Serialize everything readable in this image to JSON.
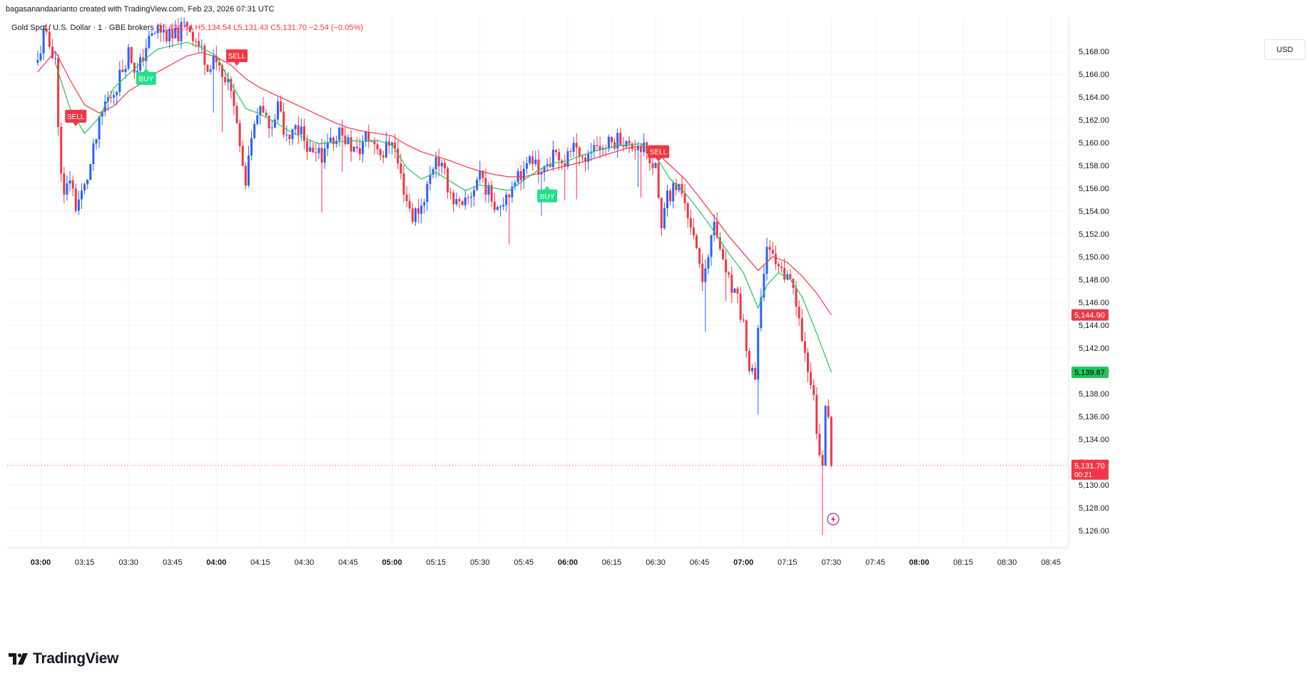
{
  "header": {
    "attribution": "bagasanandaarianto created with TradingView.com, Feb 23, 2026 07:31 UTC"
  },
  "legend": {
    "symbol": "Gold Spot / U.S. Dollar · 1 · GBE brokers",
    "open": "O5,134.54",
    "high": "H5,134.54",
    "low": "L5,131.43",
    "close": "C5,131.70",
    "change": "−2.54 (−0.05%)"
  },
  "price_scale": {
    "currency": "USD",
    "tags": {
      "red_ma": "5,144.90",
      "green_ma": "5,139.87",
      "last_price": "5,131.70",
      "countdown": "00:21"
    }
  },
  "footer": {
    "brand": "TradingView"
  },
  "colors": {
    "up": "#2962ff",
    "down": "#f23645",
    "ma_slow": "#f23645",
    "ma_fast": "#22c55e",
    "sell_signal": "#f23645",
    "buy_signal": "#22e08a",
    "grid": "#f0f3fa"
  },
  "chart_data": {
    "type": "candlestick",
    "title": "Gold Spot / U.S. Dollar · 1 · GBE brokers",
    "ylim": [
      5124.5,
      5171
    ],
    "y_ticks": [
      "5,126.00",
      "5,128.00",
      "5,130.00",
      "5,132.00",
      "5,134.00",
      "5,136.00",
      "5,138.00",
      "5,140.00",
      "5,142.00",
      "5,144.00",
      "5,146.00",
      "5,148.00",
      "5,150.00",
      "5,152.00",
      "5,154.00",
      "5,156.00",
      "5,158.00",
      "5,160.00",
      "5,162.00",
      "5,164.00",
      "5,166.00",
      "5,168.00"
    ],
    "x_ticks": [
      "03:00",
      "03:15",
      "03:30",
      "03:45",
      "04:00",
      "04:15",
      "04:30",
      "04:45",
      "05:00",
      "05:15",
      "05:30",
      "05:45",
      "06:00",
      "06:15",
      "06:30",
      "06:45",
      "07:00",
      "07:15",
      "07:30",
      "07:45",
      "08:00",
      "08:15",
      "08:30",
      "08:45"
    ],
    "x_bold": [
      "03:00",
      "04:00",
      "05:00",
      "06:00",
      "07:00",
      "08:00"
    ],
    "grid": true,
    "price_path": [
      [
        "02:59",
        5167.0
      ],
      [
        "03:01",
        5169.5
      ],
      [
        "03:05",
        5167.5
      ],
      [
        "03:06",
        5161.0
      ],
      [
        "03:08",
        5155.0
      ],
      [
        "03:10",
        5157.0
      ],
      [
        "03:12",
        5154.5
      ],
      [
        "03:15",
        5156.0
      ],
      [
        "03:17",
        5158.0
      ],
      [
        "03:20",
        5161.5
      ],
      [
        "03:22",
        5163.5
      ],
      [
        "03:25",
        5164.5
      ],
      [
        "03:28",
        5166.5
      ],
      [
        "03:30",
        5168.0
      ],
      [
        "03:33",
        5166.0
      ],
      [
        "03:36",
        5168.5
      ],
      [
        "03:40",
        5170.0
      ],
      [
        "03:45",
        5169.0
      ],
      [
        "03:50",
        5170.5
      ],
      [
        "03:55",
        5168.0
      ],
      [
        "03:58",
        5166.5
      ],
      [
        "04:00",
        5167.5
      ],
      [
        "04:03",
        5166.0
      ],
      [
        "04:06",
        5164.0
      ],
      [
        "04:08",
        5159.0
      ],
      [
        "04:10",
        5157.0
      ],
      [
        "04:12",
        5161.0
      ],
      [
        "04:15",
        5163.0
      ],
      [
        "04:18",
        5161.0
      ],
      [
        "04:21",
        5163.0
      ],
      [
        "04:24",
        5160.0
      ],
      [
        "04:27",
        5161.5
      ],
      [
        "04:30",
        5160.5
      ],
      [
        "04:33",
        5158.5
      ],
      [
        "04:36",
        5159.0
      ],
      [
        "04:39",
        5160.0
      ],
      [
        "04:42",
        5161.0
      ],
      [
        "04:45",
        5160.0
      ],
      [
        "04:48",
        5159.0
      ],
      [
        "04:51",
        5160.5
      ],
      [
        "04:54",
        5160.0
      ],
      [
        "04:57",
        5159.0
      ],
      [
        "05:00",
        5160.5
      ],
      [
        "05:03",
        5157.0
      ],
      [
        "05:05",
        5155.0
      ],
      [
        "05:07",
        5153.5
      ],
      [
        "05:10",
        5154.5
      ],
      [
        "05:13",
        5157.0
      ],
      [
        "05:15",
        5159.0
      ],
      [
        "05:18",
        5157.0
      ],
      [
        "05:21",
        5155.0
      ],
      [
        "05:24",
        5154.0
      ],
      [
        "05:27",
        5155.5
      ],
      [
        "05:30",
        5157.5
      ],
      [
        "05:33",
        5155.5
      ],
      [
        "05:36",
        5154.5
      ],
      [
        "05:39",
        5155.5
      ],
      [
        "05:42",
        5157.0
      ],
      [
        "05:45",
        5157.5
      ],
      [
        "05:48",
        5158.5
      ],
      [
        "05:51",
        5157.0
      ],
      [
        "05:54",
        5158.5
      ],
      [
        "05:57",
        5159.0
      ],
      [
        "06:00",
        5158.5
      ],
      [
        "06:03",
        5160.0
      ],
      [
        "06:06",
        5158.5
      ],
      [
        "06:09",
        5160.0
      ],
      [
        "06:12",
        5159.5
      ],
      [
        "06:15",
        5160.0
      ],
      [
        "06:18",
        5160.5
      ],
      [
        "06:21",
        5159.5
      ],
      [
        "06:24",
        5160.0
      ],
      [
        "06:27",
        5159.5
      ],
      [
        "06:30",
        5157.5
      ],
      [
        "06:32",
        5153.0
      ],
      [
        "06:34",
        5155.0
      ],
      [
        "06:37",
        5156.0
      ],
      [
        "06:40",
        5155.0
      ],
      [
        "06:42",
        5153.0
      ],
      [
        "06:44",
        5151.0
      ],
      [
        "06:46",
        5148.0
      ],
      [
        "06:48",
        5150.5
      ],
      [
        "06:50",
        5152.5
      ],
      [
        "06:52",
        5150.0
      ],
      [
        "06:54",
        5148.5
      ],
      [
        "06:56",
        5147.0
      ],
      [
        "06:58",
        5146.0
      ],
      [
        "07:00",
        5144.0
      ],
      [
        "07:02",
        5140.0
      ],
      [
        "07:04",
        5139.0
      ],
      [
        "07:06",
        5147.0
      ],
      [
        "07:08",
        5151.0
      ],
      [
        "07:10",
        5150.0
      ],
      [
        "07:12",
        5149.5
      ],
      [
        "07:14",
        5148.0
      ],
      [
        "07:16",
        5147.5
      ],
      [
        "07:18",
        5146.0
      ],
      [
        "07:20",
        5142.0
      ],
      [
        "07:22",
        5140.0
      ],
      [
        "07:24",
        5138.0
      ],
      [
        "07:26",
        5132.0
      ],
      [
        "07:27",
        5131.5
      ],
      [
        "07:28",
        5136.5
      ],
      [
        "07:29",
        5136.5
      ],
      [
        "07:30",
        5131.7
      ]
    ],
    "series": [
      {
        "name": "",
        "color": "#f23645",
        "values": [
          [
            "02:59",
            5166.2
          ],
          [
            "03:05",
            5168.0
          ],
          [
            "03:10",
            5165.5
          ],
          [
            "03:15",
            5163.3
          ],
          [
            "03:20",
            5162.6
          ],
          [
            "03:25",
            5163.2
          ],
          [
            "03:30",
            5164.5
          ],
          [
            "03:35",
            5165.3
          ],
          [
            "03:40",
            5166.2
          ],
          [
            "03:45",
            5166.9
          ],
          [
            "03:50",
            5167.6
          ],
          [
            "03:55",
            5167.9
          ],
          [
            "04:00",
            5167.5
          ],
          [
            "04:05",
            5166.8
          ],
          [
            "04:10",
            5165.6
          ],
          [
            "04:15",
            5164.8
          ],
          [
            "04:20",
            5164.2
          ],
          [
            "04:25",
            5163.6
          ],
          [
            "04:30",
            5163.0
          ],
          [
            "04:35",
            5162.4
          ],
          [
            "04:40",
            5161.8
          ],
          [
            "04:45",
            5161.3
          ],
          [
            "04:50",
            5161.0
          ],
          [
            "04:55",
            5160.8
          ],
          [
            "05:00",
            5160.6
          ],
          [
            "05:05",
            5159.8
          ],
          [
            "05:10",
            5159.2
          ],
          [
            "05:15",
            5158.8
          ],
          [
            "05:20",
            5158.4
          ],
          [
            "05:25",
            5157.9
          ],
          [
            "05:30",
            5157.5
          ],
          [
            "05:35",
            5157.2
          ],
          [
            "05:40",
            5157.0
          ],
          [
            "05:45",
            5157.0
          ],
          [
            "05:50",
            5157.3
          ],
          [
            "05:55",
            5157.7
          ],
          [
            "06:00",
            5158.0
          ],
          [
            "06:05",
            5158.3
          ],
          [
            "06:10",
            5158.7
          ],
          [
            "06:15",
            5159.1
          ],
          [
            "06:20",
            5159.5
          ],
          [
            "06:25",
            5159.7
          ],
          [
            "06:30",
            5159.2
          ],
          [
            "06:35",
            5158.0
          ],
          [
            "06:40",
            5156.8
          ],
          [
            "06:45",
            5155.2
          ],
          [
            "06:50",
            5153.5
          ],
          [
            "06:55",
            5151.8
          ],
          [
            "07:00",
            5150.3
          ],
          [
            "07:05",
            5148.8
          ],
          [
            "07:10",
            5150.0
          ],
          [
            "07:15",
            5149.5
          ],
          [
            "07:20",
            5148.3
          ],
          [
            "07:25",
            5146.8
          ],
          [
            "07:30",
            5144.9
          ]
        ]
      },
      {
        "name": "",
        "color": "#22c55e",
        "values": [
          [
            "03:05",
            5167.0
          ],
          [
            "03:10",
            5163.0
          ],
          [
            "03:15",
            5160.8
          ],
          [
            "03:20",
            5162.2
          ],
          [
            "03:25",
            5164.8
          ],
          [
            "03:30",
            5166.0
          ],
          [
            "03:35",
            5167.2
          ],
          [
            "03:40",
            5168.2
          ],
          [
            "03:45",
            5168.5
          ],
          [
            "03:50",
            5168.8
          ],
          [
            "03:55",
            5168.3
          ],
          [
            "04:00",
            5167.6
          ],
          [
            "04:05",
            5165.2
          ],
          [
            "04:10",
            5163.0
          ],
          [
            "04:15",
            5162.5
          ],
          [
            "04:20",
            5161.8
          ],
          [
            "04:25",
            5161.0
          ],
          [
            "04:30",
            5160.4
          ],
          [
            "04:35",
            5159.9
          ],
          [
            "04:40",
            5160.0
          ],
          [
            "04:45",
            5160.2
          ],
          [
            "04:50",
            5160.1
          ],
          [
            "04:55",
            5160.2
          ],
          [
            "05:00",
            5159.8
          ],
          [
            "05:05",
            5157.8
          ],
          [
            "05:10",
            5156.8
          ],
          [
            "05:15",
            5157.4
          ],
          [
            "05:20",
            5156.6
          ],
          [
            "05:25",
            5155.8
          ],
          [
            "05:30",
            5156.3
          ],
          [
            "05:35",
            5156.0
          ],
          [
            "05:40",
            5155.8
          ],
          [
            "05:45",
            5156.7
          ],
          [
            "05:50",
            5157.6
          ],
          [
            "05:55",
            5158.2
          ],
          [
            "06:00",
            5158.4
          ],
          [
            "06:05",
            5158.9
          ],
          [
            "06:10",
            5159.3
          ],
          [
            "06:15",
            5159.6
          ],
          [
            "06:20",
            5159.8
          ],
          [
            "06:25",
            5159.9
          ],
          [
            "06:30",
            5158.8
          ],
          [
            "06:35",
            5156.8
          ],
          [
            "06:40",
            5155.6
          ],
          [
            "06:45",
            5154.0
          ],
          [
            "06:50",
            5152.2
          ],
          [
            "06:55",
            5150.3
          ],
          [
            "07:00",
            5148.6
          ],
          [
            "07:05",
            5145.5
          ],
          [
            "07:08",
            5147.5
          ],
          [
            "07:12",
            5148.6
          ],
          [
            "07:16",
            5148.0
          ],
          [
            "07:20",
            5146.5
          ],
          [
            "07:25",
            5143.3
          ],
          [
            "07:30",
            5139.87
          ]
        ]
      }
    ],
    "signals": [
      {
        "type": "SELL",
        "time": "03:12",
        "price": 5161.5
      },
      {
        "type": "BUY",
        "time": "03:36",
        "price": 5166.5
      },
      {
        "type": "SELL",
        "time": "04:07",
        "price": 5166.8
      },
      {
        "type": "BUY",
        "time": "05:53",
        "price": 5156.2
      },
      {
        "type": "SELL",
        "time": "06:31",
        "price": 5158.4
      }
    ],
    "last_price": 5131.7,
    "price_tags": [
      {
        "value": 5144.9,
        "label": "5,144.90",
        "color": "#f23645"
      },
      {
        "value": 5139.87,
        "label": "5,139.87",
        "color": "#22c55e"
      }
    ]
  }
}
